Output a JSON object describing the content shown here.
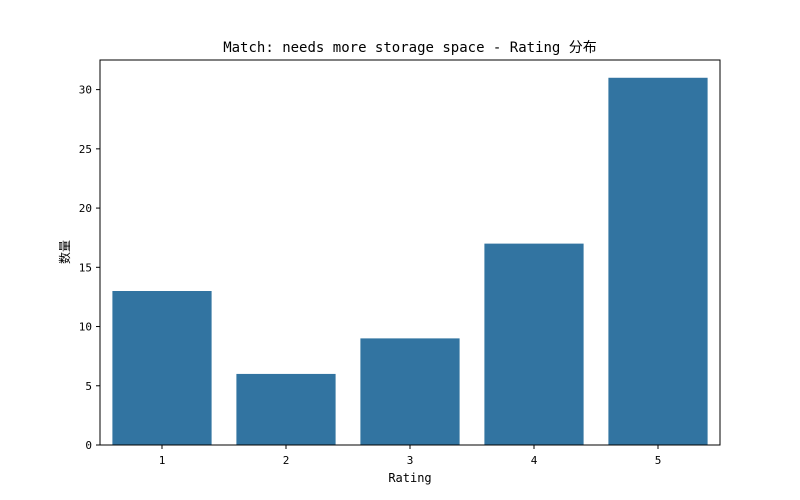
{
  "chart_data": {
    "type": "bar",
    "title": "Match: needs more storage space - Rating 分布",
    "xlabel": "Rating",
    "ylabel": "数量",
    "categories": [
      "1",
      "2",
      "3",
      "4",
      "5"
    ],
    "values": [
      13,
      6,
      9,
      17,
      31
    ],
    "ylim": [
      0,
      32.5
    ],
    "yticks": [
      0,
      5,
      10,
      15,
      20,
      25,
      30
    ],
    "grid": false,
    "legend": "none",
    "bar_color": "#3274a1"
  }
}
